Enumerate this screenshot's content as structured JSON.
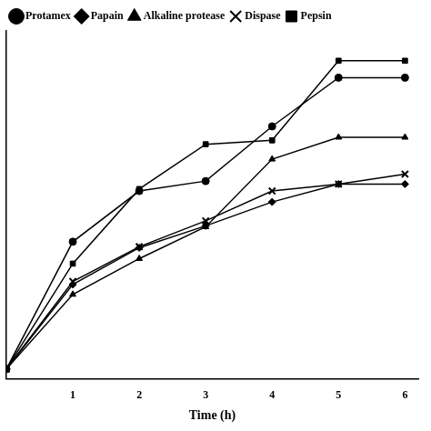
{
  "chart_data": {
    "type": "line",
    "x_label": "Time (h)",
    "x": [
      0,
      1,
      2,
      3,
      4,
      5,
      6
    ],
    "xlim": [
      0,
      6.2
    ],
    "xticks": [
      1,
      2,
      3,
      4,
      5,
      6
    ],
    "ylim": [
      -1,
      34
    ],
    "tick_labels": "x",
    "grid": false,
    "legend": "upper left",
    "series": [
      {
        "name": "Protamex",
        "color": "#000000",
        "marker": "circle",
        "values": [
          0,
          12.8,
          17.9,
          18.9,
          24.4,
          29.3,
          29.3
        ]
      },
      {
        "name": "Papain",
        "color": "#000000",
        "marker": "diamond",
        "values": [
          0,
          8.5,
          12.2,
          14.4,
          16.8,
          18.6,
          18.6
        ]
      },
      {
        "name": "Alkaline protease",
        "color": "#000000",
        "marker": "triangle",
        "values": [
          0,
          7.5,
          11.1,
          14.3,
          21.1,
          23.3,
          23.3
        ]
      },
      {
        "name": "Dispase",
        "color": "#000000",
        "marker": "cross",
        "values": [
          0,
          8.8,
          12.3,
          14.9,
          17.9,
          18.6,
          19.6
        ]
      },
      {
        "name": "Pepsin",
        "color": "#000000",
        "marker": "square",
        "values": [
          0,
          10.6,
          18.1,
          22.6,
          23.0,
          31.0,
          31.0
        ]
      }
    ]
  }
}
